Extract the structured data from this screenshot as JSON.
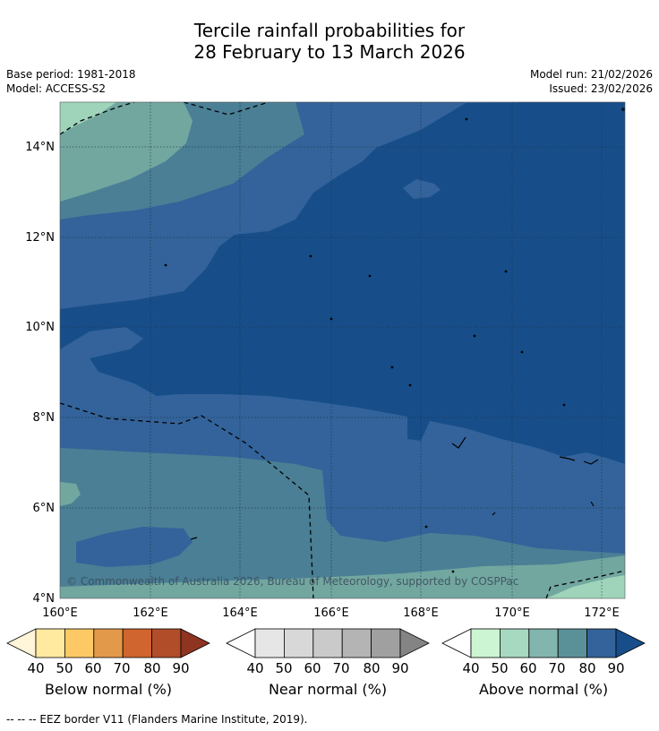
{
  "title": {
    "line1": "Tercile rainfall probabilities for",
    "line2": "28 February to 13 March 2026"
  },
  "meta": {
    "base_period": "Base period: 1981-2018",
    "model": "Model: ACCESS-S2",
    "model_run": "Model run: 21/02/2026",
    "issued": "Issued: 23/02/2026"
  },
  "map": {
    "lat_labels": [
      "14°N",
      "12°N",
      "10°N",
      "8°N",
      "6°N",
      "4°N"
    ],
    "lon_labels": [
      "160°E",
      "162°E",
      "164°E",
      "166°E",
      "168°E",
      "170°E",
      "172°E"
    ],
    "copyright": "© Commonwealth of Australia 2026, Bureau of Meteorology, supported by COSPPac",
    "colors": {
      "above_40": "#9fd4ba",
      "above_50": "#72a7a0",
      "above_60": "#4a7f95",
      "above_70": "#33639a",
      "above_80": "#174e8a",
      "above_90": "#0d3f7a"
    }
  },
  "colorbars": [
    {
      "label": "Below normal (%)",
      "ticks": [
        "40",
        "50",
        "60",
        "70",
        "80",
        "90"
      ],
      "colors": [
        "#fff5d8",
        "#ffeaa0",
        "#fdc965",
        "#e3994a",
        "#d0652f",
        "#b24d2a",
        "#8e3420"
      ]
    },
    {
      "label": "Near normal (%)",
      "ticks": [
        "40",
        "50",
        "60",
        "70",
        "80",
        "90"
      ],
      "colors": [
        "#ffffff",
        "#e6e6e6",
        "#d8d8d8",
        "#cacaca",
        "#b4b4b4",
        "#a0a0a0",
        "#848484"
      ]
    },
    {
      "label": "Above normal (%)",
      "ticks": [
        "40",
        "50",
        "60",
        "70",
        "80",
        "90"
      ],
      "colors": [
        "#ffffff",
        "#cbf5d3",
        "#a7d8c0",
        "#82b5ad",
        "#5a9198",
        "#33639a",
        "#174e8a"
      ]
    }
  ],
  "footer": "--  --  -- EEZ border V11 (Flanders Marine Institute, 2019)."
}
